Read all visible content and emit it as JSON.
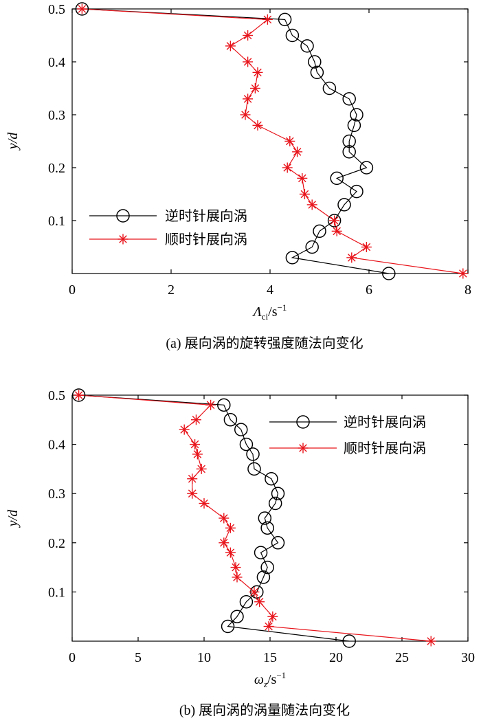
{
  "chart_data": [
    {
      "type": "line",
      "caption": "(a) 展向涡的旋转强度随法向变化",
      "xlabel_main": "Λ",
      "xlabel_sub": "ci",
      "xlabel_unit": "/s",
      "xlabel_exp": "−1",
      "ylabel_main": "y",
      "ylabel_tail": "/d",
      "xlim": [
        0,
        8
      ],
      "ylim": [
        0,
        0.5
      ],
      "xticks": [
        0,
        2,
        4,
        6,
        8
      ],
      "yticks": [
        0.1,
        0.2,
        0.3,
        0.4,
        0.5
      ],
      "legend_position": "bottom-left",
      "grid": false,
      "series": [
        {
          "name": "逆时针展向涡",
          "color": "#000000",
          "marker": "circle",
          "points": [
            [
              0.2,
              0.5
            ],
            [
              4.3,
              0.48
            ],
            [
              4.45,
              0.45
            ],
            [
              4.75,
              0.43
            ],
            [
              4.9,
              0.4
            ],
            [
              4.95,
              0.38
            ],
            [
              5.2,
              0.35
            ],
            [
              5.6,
              0.33
            ],
            [
              5.75,
              0.3
            ],
            [
              5.7,
              0.28
            ],
            [
              5.6,
              0.25
            ],
            [
              5.6,
              0.23
            ],
            [
              5.95,
              0.2
            ],
            [
              5.35,
              0.18
            ],
            [
              5.75,
              0.155
            ],
            [
              5.5,
              0.13
            ],
            [
              5.3,
              0.1
            ],
            [
              5.0,
              0.08
            ],
            [
              4.85,
              0.05
            ],
            [
              4.45,
              0.03
            ],
            [
              6.4,
              0.0
            ]
          ]
        },
        {
          "name": "顺时针展向涡",
          "color": "#e8141b",
          "marker": "asterisk",
          "points": [
            [
              0.2,
              0.5
            ],
            [
              3.95,
              0.48
            ],
            [
              3.55,
              0.45
            ],
            [
              3.2,
              0.43
            ],
            [
              3.55,
              0.4
            ],
            [
              3.75,
              0.38
            ],
            [
              3.7,
              0.35
            ],
            [
              3.55,
              0.33
            ],
            [
              3.5,
              0.3
            ],
            [
              3.75,
              0.28
            ],
            [
              4.4,
              0.25
            ],
            [
              4.55,
              0.23
            ],
            [
              4.35,
              0.2
            ],
            [
              4.65,
              0.18
            ],
            [
              4.7,
              0.15
            ],
            [
              4.85,
              0.13
            ],
            [
              5.3,
              0.1
            ],
            [
              5.35,
              0.08
            ],
            [
              5.95,
              0.05
            ],
            [
              5.65,
              0.03
            ],
            [
              7.9,
              0.0
            ]
          ]
        }
      ]
    },
    {
      "type": "line",
      "caption": "(b) 展向涡的涡量随法向变化",
      "xlabel_main": "ω",
      "xlabel_sub": "z",
      "xlabel_unit": "/s",
      "xlabel_exp": "−1",
      "ylabel_main": "y",
      "ylabel_tail": "/d",
      "xlim": [
        0,
        30
      ],
      "ylim": [
        0,
        0.5
      ],
      "xticks": [
        0,
        5,
        10,
        15,
        20,
        25,
        30
      ],
      "yticks": [
        0.1,
        0.2,
        0.3,
        0.4,
        0.5
      ],
      "legend_position": "top-right",
      "grid": false,
      "series": [
        {
          "name": "逆时针展向涡",
          "color": "#000000",
          "marker": "circle",
          "points": [
            [
              0.5,
              0.5
            ],
            [
              11.5,
              0.48
            ],
            [
              12.0,
              0.45
            ],
            [
              12.8,
              0.43
            ],
            [
              13.2,
              0.4
            ],
            [
              13.7,
              0.38
            ],
            [
              13.8,
              0.35
            ],
            [
              15.1,
              0.33
            ],
            [
              15.6,
              0.3
            ],
            [
              15.4,
              0.28
            ],
            [
              14.6,
              0.25
            ],
            [
              14.8,
              0.23
            ],
            [
              15.6,
              0.2
            ],
            [
              14.3,
              0.18
            ],
            [
              14.8,
              0.15
            ],
            [
              14.5,
              0.13
            ],
            [
              14.0,
              0.1
            ],
            [
              13.2,
              0.08
            ],
            [
              12.5,
              0.05
            ],
            [
              11.8,
              0.03
            ],
            [
              21.0,
              0.0
            ]
          ]
        },
        {
          "name": "顺时针展向涡",
          "color": "#e8141b",
          "marker": "asterisk",
          "points": [
            [
              0.5,
              0.5
            ],
            [
              10.5,
              0.48
            ],
            [
              9.4,
              0.45
            ],
            [
              8.5,
              0.43
            ],
            [
              9.3,
              0.4
            ],
            [
              9.5,
              0.38
            ],
            [
              9.8,
              0.35
            ],
            [
              9.1,
              0.33
            ],
            [
              9.1,
              0.3
            ],
            [
              10.0,
              0.28
            ],
            [
              11.5,
              0.25
            ],
            [
              12.0,
              0.23
            ],
            [
              11.5,
              0.2
            ],
            [
              12.0,
              0.18
            ],
            [
              12.4,
              0.15
            ],
            [
              12.5,
              0.13
            ],
            [
              13.8,
              0.1
            ],
            [
              14.2,
              0.08
            ],
            [
              15.2,
              0.05
            ],
            [
              14.9,
              0.03
            ],
            [
              27.2,
              0.0
            ]
          ]
        }
      ]
    }
  ]
}
